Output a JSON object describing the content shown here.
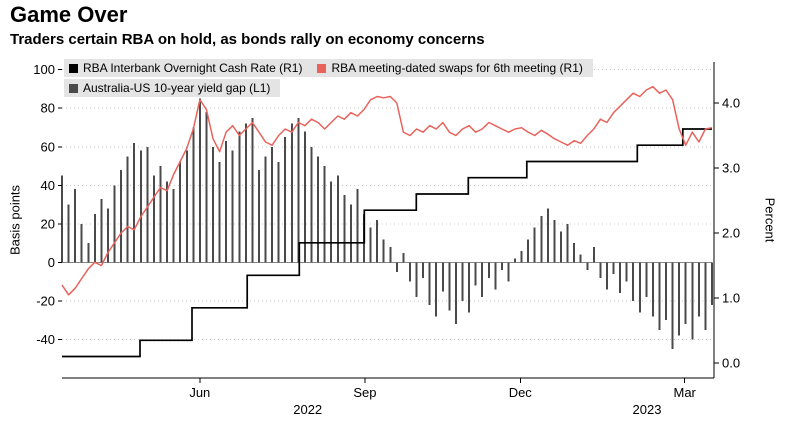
{
  "chart_data": {
    "type": "mixed",
    "title": "Game Over",
    "subtitle": "Traders certain RBA on hold, as bonds rally on economy concerns",
    "background": "#ffffff",
    "legend": {
      "position": "top-left",
      "items": [
        {
          "id": "cash-rate",
          "label": "RBA Interbank Overnight Cash Rate (R1)",
          "color": "#000000"
        },
        {
          "id": "swaps",
          "label": "RBA meeting-dated swaps for 6th meeting (R1)",
          "color": "#e8635c"
        },
        {
          "id": "yield-gap",
          "label": "Australia-US 10-year yield gap (L1)",
          "color": "#4a4a4a"
        }
      ]
    },
    "axes": {
      "left": {
        "label": "Basis points",
        "ticks": [
          100,
          80,
          60,
          40,
          20,
          0,
          -20,
          -40
        ],
        "range": [
          -60,
          104
        ]
      },
      "right": {
        "label": "Percent",
        "ticks": [
          4.0,
          3.0,
          2.0,
          1.0,
          0.0
        ],
        "range": [
          -0.23,
          4.63
        ],
        "decimals": 1
      },
      "x": {
        "tick_labels": [
          "Jun",
          "Sep",
          "Dec",
          "Mar"
        ],
        "tick_positions": [
          0.212,
          0.466,
          0.705,
          0.958
        ],
        "year_labels": [
          "2022",
          "2023"
        ],
        "year_positions": [
          0.378,
          0.9
        ]
      }
    },
    "grid": {
      "horizontal": "dotted",
      "color": "#c9c9c9",
      "zero_line_color": "#888888"
    },
    "series": [
      {
        "id": "yield-gap",
        "name": "Australia-US 10-year yield gap",
        "type": "bar",
        "axis": "left",
        "unit": "basis points",
        "color": "#4a4a4a",
        "values": [
          45,
          30,
          38,
          20,
          10,
          25,
          33,
          28,
          40,
          48,
          55,
          62,
          58,
          60,
          45,
          50,
          42,
          38,
          52,
          58,
          70,
          85,
          78,
          60,
          52,
          63,
          58,
          68,
          72,
          75,
          48,
          55,
          60,
          52,
          65,
          72,
          75,
          68,
          60,
          55,
          50,
          42,
          45,
          35,
          30,
          38,
          25,
          18,
          22,
          12,
          8,
          -5,
          5,
          -10,
          -18,
          -8,
          -22,
          -28,
          -15,
          -25,
          -32,
          -20,
          -26,
          -12,
          -18,
          -8,
          -14,
          -4,
          -10,
          2,
          6,
          12,
          18,
          24,
          28,
          22,
          16,
          20,
          10,
          4,
          -4,
          8,
          -8,
          -14,
          -6,
          -16,
          -10,
          -20,
          -26,
          -18,
          -28,
          -35,
          -30,
          -45,
          -38,
          -32,
          -40,
          -28,
          -35,
          -22
        ]
      },
      {
        "id": "cash-rate",
        "name": "RBA Interbank Overnight Cash Rate",
        "type": "step",
        "axis": "right",
        "unit": "percent",
        "color": "#000000",
        "points": [
          [
            0,
            0.1
          ],
          [
            0.12,
            0.1
          ],
          [
            0.12,
            0.35
          ],
          [
            0.2,
            0.35
          ],
          [
            0.2,
            0.85
          ],
          [
            0.285,
            0.85
          ],
          [
            0.285,
            1.35
          ],
          [
            0.365,
            1.35
          ],
          [
            0.365,
            1.85
          ],
          [
            0.465,
            1.85
          ],
          [
            0.465,
            2.35
          ],
          [
            0.545,
            2.35
          ],
          [
            0.545,
            2.6
          ],
          [
            0.625,
            2.6
          ],
          [
            0.625,
            2.85
          ],
          [
            0.715,
            2.85
          ],
          [
            0.715,
            3.1
          ],
          [
            0.885,
            3.1
          ],
          [
            0.885,
            3.35
          ],
          [
            0.955,
            3.35
          ],
          [
            0.955,
            3.6
          ],
          [
            1,
            3.6
          ]
        ]
      },
      {
        "id": "swaps",
        "name": "RBA meeting-dated swaps for 6th meeting",
        "type": "line",
        "axis": "right",
        "unit": "percent",
        "color": "#e8635c",
        "values": [
          1.2,
          1.05,
          1.15,
          1.3,
          1.45,
          1.55,
          1.5,
          1.7,
          1.85,
          2.0,
          2.1,
          2.05,
          2.25,
          2.4,
          2.55,
          2.7,
          2.65,
          2.9,
          3.1,
          3.3,
          3.6,
          4.05,
          3.9,
          3.45,
          3.25,
          3.55,
          3.65,
          3.5,
          3.6,
          3.7,
          3.55,
          3.4,
          3.35,
          3.5,
          3.6,
          3.55,
          3.7,
          3.65,
          3.75,
          3.7,
          3.6,
          3.7,
          3.8,
          3.75,
          3.85,
          3.8,
          3.9,
          4.05,
          4.1,
          4.08,
          4.1,
          4.0,
          3.55,
          3.5,
          3.6,
          3.55,
          3.65,
          3.6,
          3.7,
          3.55,
          3.5,
          3.6,
          3.65,
          3.55,
          3.6,
          3.7,
          3.65,
          3.6,
          3.55,
          3.6,
          3.62,
          3.55,
          3.5,
          3.58,
          3.52,
          3.45,
          3.4,
          3.35,
          3.42,
          3.38,
          3.5,
          3.6,
          3.75,
          3.7,
          3.85,
          3.95,
          4.05,
          4.15,
          4.1,
          4.2,
          4.25,
          4.15,
          4.2,
          4.05,
          3.6,
          3.35,
          3.55,
          3.4,
          3.6,
          3.62
        ]
      }
    ]
  }
}
